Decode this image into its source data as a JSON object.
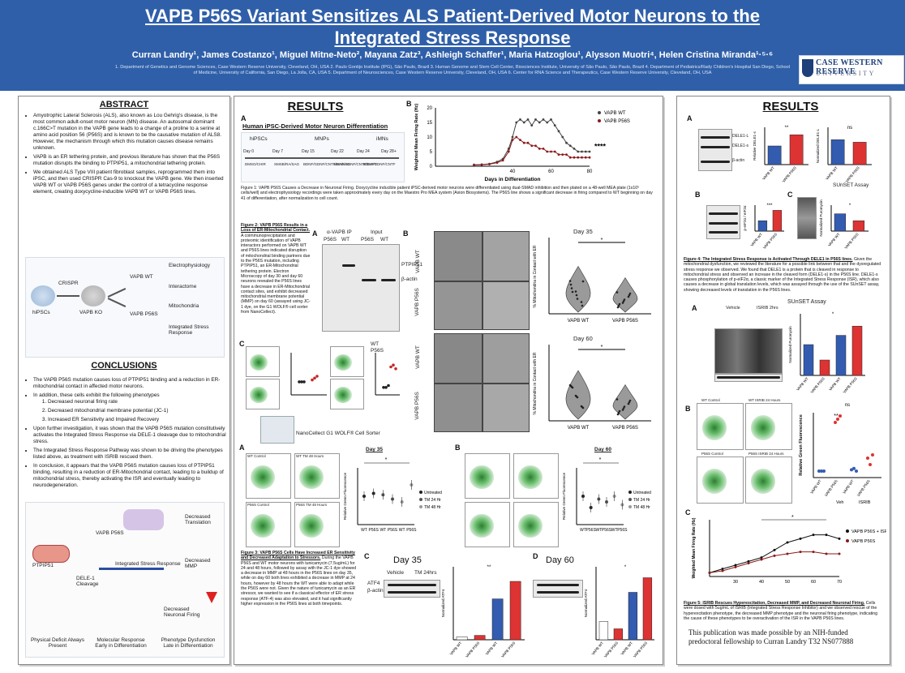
{
  "header": {
    "title_line1": "VAPB P56S Variant Sensitizes ALS Patient-Derived Motor Neurons to the",
    "title_line2": "Integrated Stress Response",
    "authors": "Curran Landry¹, James Costanzo¹, Miguel Mitne-Neto², Mayana Zatz³, Ashleigh Schaffer¹, Maria Hatzoglou¹, Alysson Muotri⁴, Helen Cristina Miranda¹·⁵·⁶",
    "affiliations": "1. Department of Genetics and Genome Sciences, Case Western Reserve University, Cleveland, OH, USA 2. Paulo Gontijo Institute (IPG), São Paulo, Brazil 3. Human Genome and Stem Cell Center, Biosciences Institute, University of São Paulo, São Paulo, Brazil 4. Department of Pediatrics/Rady Children's Hospital San Diego, School of Medicine, University of California, San Diego, La Jolla, CA, USA 5. Department of Neurosciences, Case Western Reserve University, Cleveland, OH, USA 6. Center for RNA Science and Therapeutics, Case Western Reserve University, Cleveland, OH, USA",
    "logo_top": "CASE WESTERN RESERVE",
    "logo_bottom": "UNIVERSITY"
  },
  "abstract": {
    "title": "ABSTRACT",
    "items": [
      "Amyotrophic Lateral Sclerosis (ALS), also known as Lou Gehrig's disease, is the most common adult-onset motor neuron (MN) disease. An autosomal dominant c.166C>T mutation in the VAPB gene leads to a change of a proline to a serine at amino acid position 56 (P56S) and is known to be the causative mutation of ALS8. However, the mechanism through which this mutation causes disease remains unknown.",
      "VAPB is an ER tethering protein, and previous literature has shown that the P56S mutation disrupts the binding to PTPIP51, a mitochondrial tethering protein.",
      "We obtained ALS Type VIII patient fibroblast samples, reprogrammed them into iPSC, and then used CRISPR Cas-9 to knockout the VAPB gene. We then inserted VAPB WT or VAPB P56S genes under the control of a tetracycline response element, creating doxycycline-inducible VAPB WT or VAPB P56S lines."
    ],
    "diagram": {
      "nodes": [
        "hiPSCs",
        "CRISPR",
        "VAPB KO",
        "VAPB WT",
        "VAPB P56S",
        "Electrophysiology",
        "Interactome",
        "Mitochondria",
        "Integrated Stress Response"
      ]
    }
  },
  "conclusions": {
    "title": "CONCLUSIONS",
    "items": [
      "The VAPB P56S mutation causes loss of PTPIP51 binding and a reduction in ER-mitochondrial contact in affected motor neurons.",
      "In addition, these cells exhibit the following phenotypes",
      "Upon further investigation, it was shown that the VAPB P56S mutation constitutively activates the Integrated Stress Response via DELE-1 cleavage due to mitochondrial stress.",
      "The Integrated Stress Response Pathway was shown to be driving the phenotypes listed above, as treatment with ISRIB rescued them.",
      "In conclusion, it appears that the VAPB P56S mutation causes loss of PTPIP51 binding, resulting in a reduction of ER-Mitochondrial contact, leading to a buildup of mitochondrial stress, thereby activating the ISR and eventually leading to neurodegeneration."
    ],
    "sub_items": [
      "Decreased neuronal firing rate",
      "Decreased mitochondrial membrane potential (JC-1)",
      "Increased ER Sensitivity and Impaired Recovery"
    ],
    "diagram_labels": [
      "PTPIP51",
      "VAPB P56S",
      "DELE-1 Cleavage",
      "Integrated Stress Response",
      "Decreased Translation",
      "Decreased MMP",
      "Decreased Neuronal Firing"
    ],
    "footer_labels": [
      "Physical Deficit Always Present",
      "Molecular Response Early in Differentiation",
      "Phenotype Dysfunction Late in Differentiation"
    ]
  },
  "results_mid": {
    "title": "RESULTS",
    "fig1": {
      "panel_a": "A",
      "panel_a_title": "Human iPSC-Derived Motor Neuron Differentiation",
      "stages": [
        "hiPSCs",
        "MNPs",
        "iMNs"
      ],
      "days": [
        "Day 0",
        "Day 7",
        "Day 15",
        "Day 22",
        "Day 24",
        "Day 28+"
      ],
      "media": [
        "DMSO/CHIR",
        "SMSB/RA/SAG",
        "BDNF/GDNF/CNTF/RA/SAG",
        "BDNF/GDNF/CNTF/DAPT",
        "BDNF/GDNF/CNTF"
      ],
      "panel_b": "B",
      "chart_title": "",
      "ylabel": "Weighted Mean Firing Rate (Hz)",
      "xlabel": "Days in Differentiation",
      "sig": "****",
      "caption": "Figure 1: VAPB P56S Causes a Decrease in Neuronal Firing. Doxycycline inducible patient iPSC-derived motor neurons were differentiated using dual-SMAD inhibition and then plated on a 48-well MEA plate (1x10⁵ cells/well) and electrophysiology recordings were taken approximately every day on the Maestro Pro MEA system (Axion Biosystems). The P56S line shows a significant decrease in firing compared to WT beginning on day 41 of differentiation, after normalization to cell count."
    },
    "fig2": {
      "caption_title": "Figure 2: VAPB P56S Results in a Loss of ER-Mitochondrial Contact.",
      "caption": "A coimmunoprecipitation and proteomic identification of VAPB interactors performed on VAPB WT and P56S lines indicated disruption of mitochondrial binding partners due to the P56S mutation, including PTPIP51, an ER-Mitochondrial tethering protein. Electron Microscopy of day 30 and day 60 neurons revealed the P56S lines have a decrease in ER-Mitochondrial contact sites, and exhibit decreased mitochondrial membrane potential (MMP) on day 60 (assayed using JC-1 dye, on the G1 WOLF® cell sorter from NanoCellect).",
      "panel_a": "A",
      "blot_header_left": "α-VAPB IP",
      "blot_header_right": "Input",
      "lanes": [
        "P56S",
        "WT",
        "P56S",
        "WT"
      ],
      "bands": [
        "PTPIP51",
        "β-actin"
      ],
      "panel_b": "B",
      "em_rows": [
        "VAPB WT",
        "VAPB P56S",
        "VAPB WT",
        "VAPB P56S"
      ],
      "day_labels": [
        "Day 35",
        "Day 60"
      ],
      "violin_ylabel": "% Mitochondria in Contact with ER",
      "violin_x": [
        "VAPB WT",
        "VAPB P56S"
      ],
      "panel_c": "C",
      "legend": [
        "WT",
        "P56S"
      ],
      "sorter_label": "NanoCellect G1 WOLF® Cell Sorter"
    },
    "fig3": {
      "panel_a": "A",
      "panel_b": "B",
      "panel_c": "C",
      "panel_d": "D",
      "titles": [
        "Day 35",
        "Day 60"
      ],
      "flow_labels": [
        "WT Control",
        "WT TM 48 Hours",
        "P56S Control",
        "P56S TM 48 Hours"
      ],
      "legend": [
        "Untreated",
        "TM 24 Hr",
        "TM 48 Hr"
      ],
      "ylabel": "Relative Green Fluorescence",
      "x": [
        "WT",
        "P56S",
        "WT",
        "P56S",
        "WT",
        "P56S"
      ],
      "blot_headers": [
        "Vehicle",
        "TM 24hrs"
      ],
      "blot_lanes": [
        "WT",
        "P56S",
        "WT",
        "P56S"
      ],
      "blot_rows": [
        "ATF4",
        "β-actin"
      ],
      "atf4_ylabel": "Normalized ATF4",
      "atf4_x": [
        "VAPB WT",
        "VAPB P56S",
        "VAPB WT",
        "VAPB P56S"
      ],
      "groups": [
        "Veh",
        "TM"
      ],
      "caption_title": "Figure 3: VAPB P56S Cells Have Increased ER Sensitivity and Decreased Adaptation to Stressors.",
      "caption": "During the VAPB P56S and WT motor neurons with tunicamycin (7.5ug/mL) for 24 and 48 hours, followed by assay with the JC-1 dye showed a decrease in MMP at 48 hours in the P56S lines on day 35, while on day 60 both lines exhibited a decrease in MMP at 24 hours, however by 48 hours the WT were able to adapt while the P56S were not. Given the nature of tunicamycin as an ER stressor, we wanted to see if a classical effector of ER stress response (ATF-4) was also elevated, and it had significantly higher expression in the P56S lines at both timepoints."
    }
  },
  "results_right": {
    "title": "RESULTS",
    "fig4": {
      "panel_a": "A",
      "panel_b": "B",
      "panel_c": "C",
      "lanes": [
        "VAPB WT",
        "VAPB P56S"
      ],
      "bands": [
        "DELE1-L",
        "DELE1-s",
        "β-actin"
      ],
      "ylabels": [
        "Relative DELE1-s",
        "Normalized DELE1-L"
      ],
      "sunset": "SUnSET Assay",
      "b_bands": [
        "p-eIF2α",
        "eIF2α",
        "β-actin"
      ],
      "b_ylabel": "p-eIF2α / eIF2α",
      "c_ylabel": "Normalized Puromycin",
      "sig": [
        "**",
        "ns",
        "***",
        "*"
      ],
      "caption_title": "Figure 4: The Integrated Stress Response is Activated Through DELE1 in P56S lines.",
      "caption": "Given the mitochondrial dysfunction, we reviewed the literature for a possible link between that and the dysregulated stress response we observed. We found that DELE1 is a protein that is cleaved in response to mitochondrial stress and observed an increase in the cleaved form (DELE1-s) in the P56S line. DELE1-s causes phosphorylation of p-eIF2α, a classic marker of the Integrated Stress Response (ISR), which also causes a decrease in global translation levels, which was assayed through the use of the SUnSET assay, showing decreased levels of translation in the P56S lines."
    },
    "fig5": {
      "panel_a": "A",
      "panel_b": "B",
      "panel_c": "C",
      "sunset": "SUnSET Assay",
      "headers": [
        "Vehicle",
        "ISRIB 2hrs"
      ],
      "lanes": [
        "VAPB WT",
        "VAPB P56S",
        "VAPB WT",
        "VAPB P56S"
      ],
      "puro_ylabel": "Normalized Puromycin",
      "groups": [
        "Veh",
        "ISRIB"
      ],
      "flow_labels": [
        "WT Control",
        "WT ISRIB 24 Hours",
        "P56S Control",
        "P56S ISRIB 24 Hours"
      ],
      "b_ylabel": "Relative Green Fluorescence",
      "b_x": [
        "VAPB WT",
        "VAPB P56S",
        "VAPB WT",
        "VAPB P56S"
      ],
      "c_ylabel": "Weighted Mean Firing Rate (Hz)",
      "c_legend": [
        "VAPB P56S + ISRIB",
        "VAPB P56S"
      ],
      "c_x_ticks": [
        "30",
        "40",
        "50",
        "60",
        "70"
      ],
      "caption_title": "Figure 5: ISRIB Rescues Hyperexcitation, Decreased MMP, and Decreased Neuronal Firing.",
      "caption": "Cells were dosed with 5ug/mL of ISRIB (Integrated Stress Response Inhibitor) and we observed rescue of the hyperexcitation phenotype, the decreased MMP phenotype and the neuronal firing phenotype, indicating the cause of these phenotypes to be overactivation of the ISR in the VAPB P56S lines."
    },
    "funding": "This publication was made possible by an NIH-funded predoctoral fellowship to Curran Landry T32 NS077888"
  },
  "chart_data": [
    {
      "type": "line",
      "xlabel": "Days in Differentiation",
      "ylabel": "Weighted Mean Firing Rate (Hz)",
      "xlim": [
        0,
        80
      ],
      "ylim": [
        0,
        20
      ],
      "xticks": [
        40,
        60,
        80
      ],
      "yticks": [
        0,
        5,
        10,
        15,
        20
      ],
      "series": [
        {
          "name": "VAPB WT",
          "x": [
            20,
            24,
            28,
            32,
            35,
            38,
            40,
            42,
            44,
            46,
            48,
            50,
            52,
            54,
            56,
            58,
            60,
            62,
            64,
            66,
            68,
            70,
            72,
            74,
            76,
            78,
            80
          ],
          "values": [
            0.5,
            0.6,
            0.8,
            1.5,
            2.5,
            6,
            10,
            15,
            16,
            15,
            16,
            14,
            16,
            15,
            16,
            15,
            16,
            14,
            12,
            10,
            8,
            7,
            6,
            5,
            5,
            5,
            5
          ]
        },
        {
          "name": "VAPB P56S",
          "x": [
            20,
            24,
            28,
            32,
            35,
            38,
            40,
            42,
            44,
            46,
            48,
            50,
            52,
            54,
            56,
            58,
            60,
            62,
            64,
            66,
            68,
            70,
            72,
            74,
            76,
            78,
            80
          ],
          "values": [
            0.4,
            0.5,
            0.7,
            1.2,
            2,
            5,
            9,
            10,
            9,
            8,
            8,
            7,
            7,
            6,
            6,
            5,
            5,
            5,
            4,
            4,
            4,
            3,
            3,
            3,
            3,
            3,
            3
          ]
        }
      ]
    },
    {
      "type": "line",
      "xlabel": "",
      "ylabel": "Weighted Mean Firing Rate (Hz)",
      "xlim": [
        20,
        70
      ],
      "ylim": [
        0,
        15
      ],
      "series": [
        {
          "name": "VAPB P56S + ISRIB",
          "x": [
            20,
            25,
            30,
            35,
            40,
            45,
            50,
            55,
            60,
            65,
            70
          ],
          "values": [
            1,
            2,
            3,
            4,
            5,
            7,
            9,
            10,
            11,
            11,
            10
          ]
        },
        {
          "name": "VAPB P56S",
          "x": [
            20,
            25,
            30,
            35,
            40,
            45,
            50,
            55,
            60,
            65,
            70
          ],
          "values": [
            1,
            1.5,
            2.5,
            3.5,
            4.5,
            5.5,
            6,
            6.5,
            6.5,
            6,
            6
          ]
        }
      ]
    }
  ]
}
